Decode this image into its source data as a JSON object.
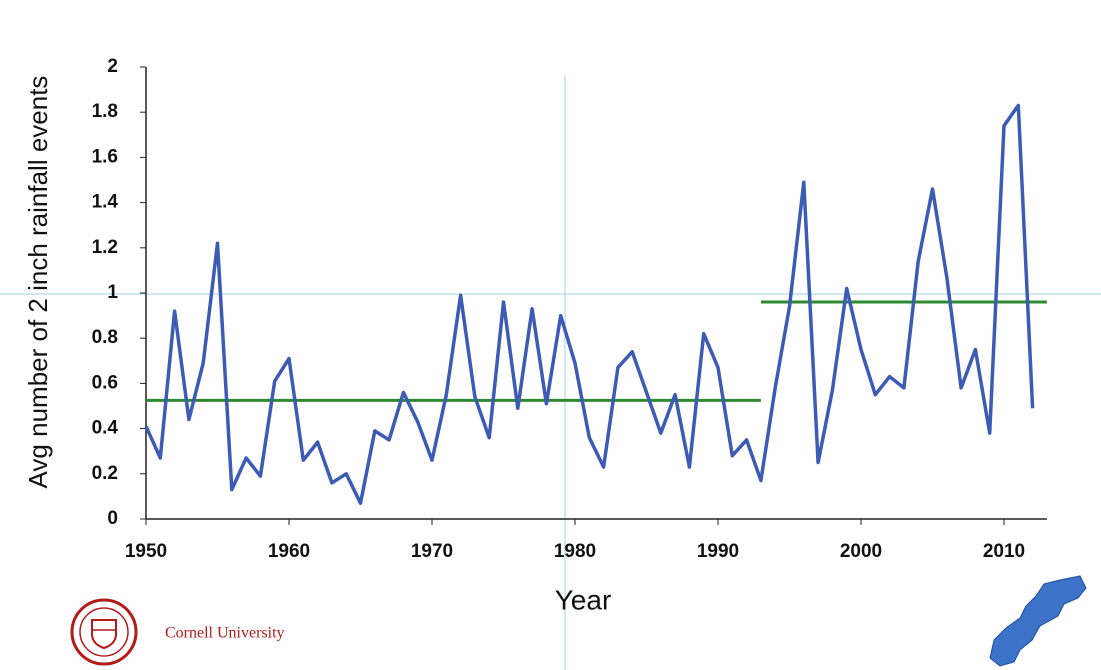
{
  "chart_data": {
    "type": "line",
    "y_label": "Avg number of 2 inch rainfall events",
    "x_label": "Year",
    "x": [
      1950,
      1951,
      1952,
      1953,
      1954,
      1955,
      1956,
      1957,
      1958,
      1959,
      1960,
      1961,
      1962,
      1963,
      1964,
      1965,
      1966,
      1967,
      1968,
      1969,
      1970,
      1971,
      1972,
      1973,
      1974,
      1975,
      1976,
      1977,
      1978,
      1979,
      1980,
      1981,
      1982,
      1983,
      1984,
      1985,
      1986,
      1987,
      1988,
      1989,
      1990,
      1991,
      1992,
      1993,
      1994,
      1995,
      1996,
      1997,
      1998,
      1999,
      2000,
      2001,
      2002,
      2003,
      2004,
      2005,
      2006,
      2007,
      2008,
      2009,
      2010,
      2011,
      2012
    ],
    "series": [
      {
        "color": "#3c5bb4",
        "values": [
          0.41,
          0.27,
          0.92,
          0.44,
          0.69,
          1.22,
          0.13,
          0.27,
          0.19,
          0.61,
          0.71,
          0.26,
          0.34,
          0.16,
          0.2,
          0.07,
          0.39,
          0.35,
          0.56,
          0.43,
          0.26,
          0.55,
          0.99,
          0.54,
          0.36,
          0.96,
          0.49,
          0.93,
          0.51,
          0.9,
          0.69,
          0.36,
          0.23,
          0.67,
          0.74,
          0.56,
          0.38,
          0.55,
          0.23,
          0.82,
          0.67,
          0.28,
          0.35,
          0.17,
          0.58,
          0.94,
          1.49,
          0.25,
          0.57,
          1.02,
          0.75,
          0.55,
          0.63,
          0.58,
          1.14,
          1.46,
          1.07,
          0.58,
          0.75,
          0.38,
          1.74,
          1.83,
          0.49
        ]
      }
    ],
    "mean_lines": [
      {
        "x": [
          1950,
          1993
        ],
        "values": [
          0.525,
          0.525
        ],
        "color": "#2f8a2f"
      },
      {
        "x": [
          1993,
          2013
        ],
        "values": [
          0.96,
          0.96
        ],
        "color": "#2f8a2f"
      }
    ],
    "xlim": [
      1950,
      2013
    ],
    "xticks": [
      1950,
      1960,
      1970,
      1980,
      1990,
      2000,
      2010
    ],
    "ylim": [
      0,
      2
    ],
    "yticks": [
      0,
      0.2,
      0.4,
      0.6,
      0.8,
      1,
      1.2,
      1.4,
      1.6,
      1.8,
      2
    ]
  },
  "footer": {
    "institution": "Cornell University"
  }
}
